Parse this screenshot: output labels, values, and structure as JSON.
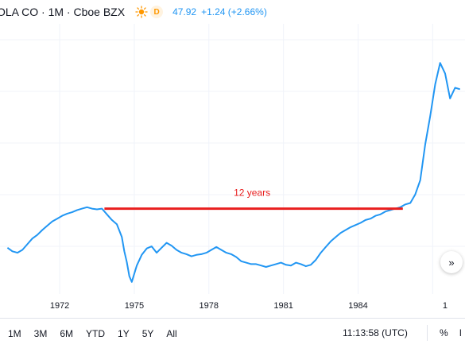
{
  "header": {
    "symbol_text": "OLA CO · 1M · Cboe BZX",
    "badge_letter": "D",
    "last_price": "47.92",
    "change": "+1.24 (+2.66%)",
    "sun_icon": "sun-icon"
  },
  "chart_data": {
    "type": "line",
    "x_ticks": [
      "1972",
      "1975",
      "1978",
      "1981",
      "1984",
      "1"
    ],
    "annotation": "12 years",
    "colors": {
      "line": "#2196f3",
      "annotation": "#e91e1e",
      "grid": "#f0f3fa"
    },
    "grid": true,
    "series": [
      {
        "x": [
          1969.9,
          1970.1,
          1970.3,
          1970.5,
          1970.7,
          1970.9,
          1971.1,
          1971.3,
          1971.5,
          1971.7,
          1971.9,
          1972.1,
          1972.3,
          1972.5,
          1972.7,
          1972.9,
          1973.1,
          1973.3,
          1973.5,
          1973.7,
          1973.9,
          1974.1,
          1974.3,
          1974.5,
          1974.6,
          1974.7,
          1974.8,
          1974.9,
          1975.1,
          1975.3,
          1975.5,
          1975.7,
          1975.9,
          1976.1,
          1976.3,
          1976.5,
          1976.7,
          1976.9,
          1977.1,
          1977.3,
          1977.5,
          1977.7,
          1977.9,
          1978.1,
          1978.3,
          1978.5,
          1978.7,
          1978.9,
          1979.1,
          1979.3,
          1979.5,
          1979.7,
          1979.9,
          1980.1,
          1980.3,
          1980.5,
          1980.7,
          1980.9,
          1981.1,
          1981.3,
          1981.5,
          1981.7,
          1981.9,
          1982.1,
          1982.3,
          1982.5,
          1982.7,
          1982.9,
          1983.1,
          1983.3,
          1983.5,
          1983.7,
          1983.9,
          1984.1,
          1984.3,
          1984.5,
          1984.7,
          1984.9,
          1985.1,
          1985.3,
          1985.5,
          1985.7,
          1985.9,
          1986.1,
          1986.3,
          1986.5,
          1986.7,
          1986.9,
          1987.1,
          1987.3,
          1987.5,
          1987.7,
          1987.9,
          1988.1
        ],
        "y": [
          0.45,
          0.4,
          0.38,
          0.42,
          0.5,
          0.58,
          0.63,
          0.7,
          0.76,
          0.82,
          0.86,
          0.9,
          0.93,
          0.95,
          0.98,
          1.0,
          1.02,
          1.0,
          0.99,
          1.0,
          0.92,
          0.84,
          0.78,
          0.6,
          0.4,
          0.25,
          0.05,
          -0.03,
          0.2,
          0.35,
          0.44,
          0.47,
          0.38,
          0.45,
          0.52,
          0.48,
          0.42,
          0.38,
          0.36,
          0.33,
          0.35,
          0.36,
          0.38,
          0.42,
          0.46,
          0.42,
          0.38,
          0.36,
          0.32,
          0.26,
          0.24,
          0.22,
          0.22,
          0.2,
          0.18,
          0.2,
          0.22,
          0.24,
          0.21,
          0.2,
          0.24,
          0.22,
          0.19,
          0.21,
          0.28,
          0.38,
          0.46,
          0.54,
          0.6,
          0.66,
          0.7,
          0.74,
          0.77,
          0.8,
          0.84,
          0.86,
          0.9,
          0.92,
          0.96,
          0.98,
          1.0,
          1.02,
          1.06,
          1.08,
          1.2,
          1.4,
          1.9,
          2.3,
          2.75,
          3.05,
          2.9,
          2.55,
          2.7,
          2.68
        ]
      }
    ],
    "reference_line": {
      "x_start": 1973.8,
      "x_end": 1985.8,
      "y": 1.0
    }
  },
  "nav": {
    "scroll_right_glyph": "»"
  },
  "footer": {
    "ranges": [
      "1M",
      "3M",
      "6M",
      "YTD",
      "1Y",
      "5Y",
      "All"
    ],
    "time": "11:13:58 (UTC)",
    "percent": "%",
    "log": "l"
  }
}
